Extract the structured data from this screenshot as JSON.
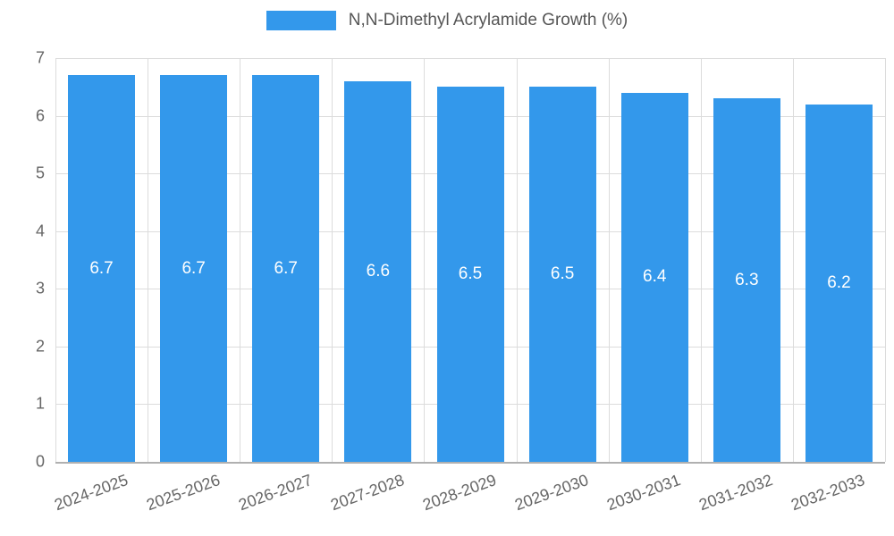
{
  "legend": {
    "label": "N,N-Dimethyl Acrylamide Growth (%)"
  },
  "chart_data": {
    "type": "bar",
    "title": "N,N-Dimethyl Acrylamide Growth (%)",
    "categories": [
      "2024-2025",
      "2025-2026",
      "2026-2027",
      "2027-2028",
      "2028-2029",
      "2029-2030",
      "2030-2031",
      "2031-2032",
      "2032-2033"
    ],
    "values": [
      6.7,
      6.7,
      6.7,
      6.6,
      6.5,
      6.5,
      6.4,
      6.3,
      6.2
    ],
    "xlabel": "",
    "ylabel": "",
    "ylim": [
      0,
      7
    ],
    "ytick_step": 1,
    "yticks": [
      "0",
      "1",
      "2",
      "3",
      "4",
      "5",
      "6",
      "7"
    ],
    "grid": true,
    "legend_position": "top-center",
    "bar_color": "#3398eb",
    "value_label_color": "#ffffff",
    "tick_label_color": "#666666",
    "grid_color": "#dcdcdc"
  }
}
